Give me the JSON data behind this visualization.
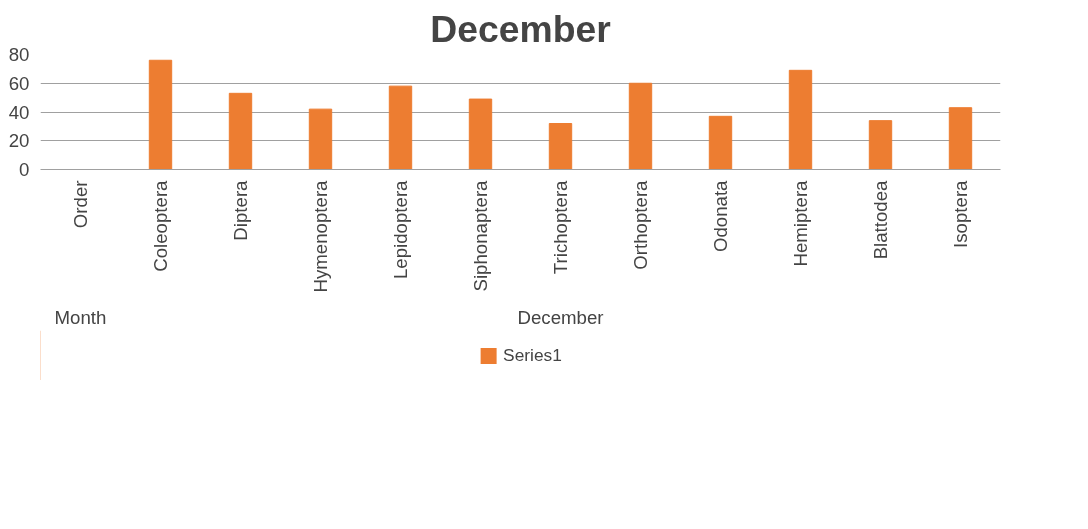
{
  "chart_data": {
    "type": "bar",
    "title": "December",
    "categories": [
      "Order",
      "Coleoptera",
      "Diptera",
      "Hymenoptera",
      "Lepidoptera",
      "Siphonaptera",
      "Trichoptera",
      "Orthoptera",
      "Odonata",
      "Hemiptera",
      "Blattodea",
      "Isoptera"
    ],
    "series": [
      {
        "name": "Series1",
        "color": "#ed7d31",
        "values": [
          null,
          76,
          53,
          42,
          58,
          49,
          32,
          60,
          37,
          69,
          34,
          43
        ]
      }
    ],
    "annotations": [
      "Month",
      "December"
    ],
    "ylim": [
      0,
      80
    ],
    "yticks": [
      0,
      20,
      40,
      60,
      80
    ],
    "grid": "y",
    "legend": "bottom"
  }
}
